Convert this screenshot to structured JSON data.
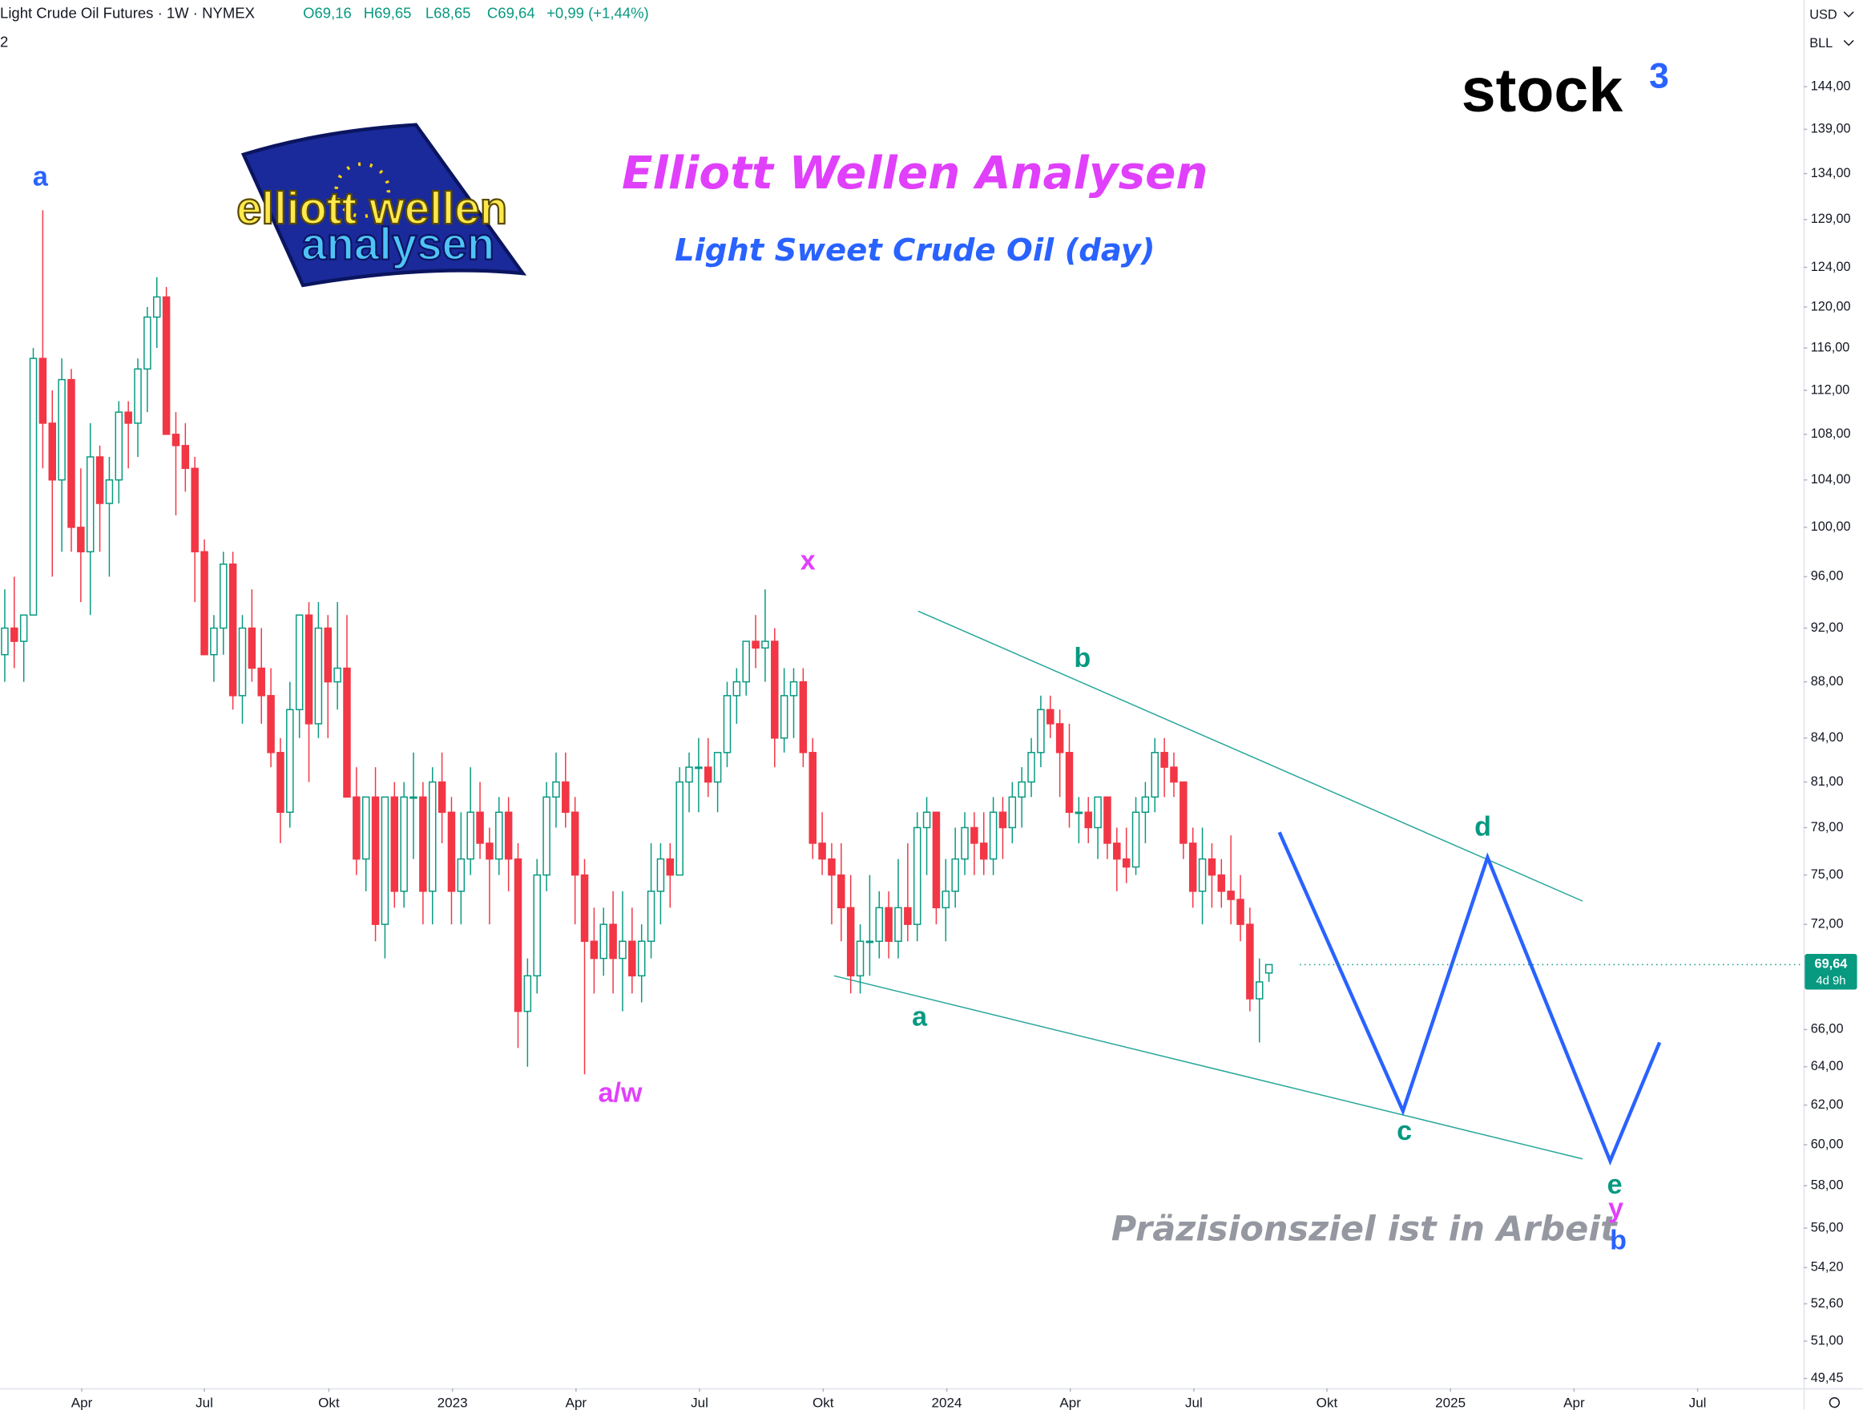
{
  "chart_data": {
    "type": "candlestick",
    "header": {
      "symbol": "Light Crude Oil Futures · 1W · NYMEX",
      "open": "O69,16",
      "high": "H69,65",
      "low": "L68,65",
      "close": "C69,64",
      "change": "+0,99 (+1,44%)",
      "left_fragment": "2"
    },
    "title": "Elliott Wellen Analysen",
    "subtitle": "Light Sweet Crude Oil (day)",
    "annotation": "Präzisionsziel ist in Arbeit",
    "brand": {
      "name": "stock",
      "sup": "3"
    },
    "logo": {
      "line1": "elliott wellen",
      "line2": "analysen"
    },
    "currency": "USD",
    "unit": "BLL",
    "price_tag": {
      "value": 69.64,
      "label": "69,64",
      "countdown": "4d 9h"
    },
    "up_color": "#089981",
    "down_color": "#f23645",
    "log_scale": true,
    "xlim": [
      -0.5,
      189.25
    ],
    "ylim": [
      49.05,
      154.7
    ],
    "xticks": [
      {
        "value": 8.1,
        "label": "Apr"
      },
      {
        "value": 21,
        "label": "Jul"
      },
      {
        "value": 34.1,
        "label": "Okt"
      },
      {
        "value": 47.1,
        "label": "2023"
      },
      {
        "value": 60.1,
        "label": "Apr"
      },
      {
        "value": 73.1,
        "label": "Jul"
      },
      {
        "value": 86.1,
        "label": "Okt"
      },
      {
        "value": 99.1,
        "label": "2024"
      },
      {
        "value": 112.1,
        "label": "Apr"
      },
      {
        "value": 125.1,
        "label": "Jul"
      },
      {
        "value": 139.1,
        "label": "Okt"
      },
      {
        "value": 152.1,
        "label": "2025"
      },
      {
        "value": 165.1,
        "label": "Apr"
      },
      {
        "value": 178.1,
        "label": "Jul"
      }
    ],
    "yticks": [
      {
        "value": 144,
        "label": "144,00"
      },
      {
        "value": 139,
        "label": "139,00"
      },
      {
        "value": 134,
        "label": "134,00"
      },
      {
        "value": 129,
        "label": "129,00"
      },
      {
        "value": 124,
        "label": "124,00"
      },
      {
        "value": 120,
        "label": "120,00"
      },
      {
        "value": 116,
        "label": "116,00"
      },
      {
        "value": 112,
        "label": "112,00"
      },
      {
        "value": 108,
        "label": "108,00"
      },
      {
        "value": 104,
        "label": "104,00"
      },
      {
        "value": 100,
        "label": "100,00"
      },
      {
        "value": 96,
        "label": "96,00"
      },
      {
        "value": 92,
        "label": "92,00"
      },
      {
        "value": 88,
        "label": "88,00"
      },
      {
        "value": 84,
        "label": "84,00"
      },
      {
        "value": 81,
        "label": "81,00"
      },
      {
        "value": 78,
        "label": "78,00"
      },
      {
        "value": 75,
        "label": "75,00"
      },
      {
        "value": 72,
        "label": "72,00"
      },
      {
        "value": 66,
        "label": "66,00"
      },
      {
        "value": 64,
        "label": "64,00"
      },
      {
        "value": 62,
        "label": "62,00"
      },
      {
        "value": 60,
        "label": "60,00"
      },
      {
        "value": 58,
        "label": "58,00"
      },
      {
        "value": 56,
        "label": "56,00"
      },
      {
        "value": 54.2,
        "label": "54,20"
      },
      {
        "value": 52.6,
        "label": "52,60"
      },
      {
        "value": 51,
        "label": "51,00"
      },
      {
        "value": 49.45,
        "label": "49,45"
      }
    ],
    "candles": [
      [
        90,
        95,
        88,
        92
      ],
      [
        92,
        96,
        89,
        91
      ],
      [
        91,
        93,
        88,
        93
      ],
      [
        93,
        116,
        93,
        115
      ],
      [
        115,
        130,
        105,
        109
      ],
      [
        109,
        112,
        96,
        104
      ],
      [
        104,
        115,
        98,
        113
      ],
      [
        113,
        114,
        98,
        100
      ],
      [
        100,
        105,
        94,
        98
      ],
      [
        98,
        109,
        93,
        106
      ],
      [
        106,
        107,
        98,
        102
      ],
      [
        102,
        106,
        96,
        104
      ],
      [
        104,
        111,
        102,
        110
      ],
      [
        110,
        111,
        105,
        109
      ],
      [
        109,
        115,
        106,
        114
      ],
      [
        114,
        120,
        110,
        119
      ],
      [
        119,
        123,
        116,
        121
      ],
      [
        121,
        122,
        108,
        108
      ],
      [
        108,
        110,
        101,
        107
      ],
      [
        107,
        109,
        103,
        105
      ],
      [
        105,
        106,
        94,
        98
      ],
      [
        98,
        99,
        90,
        90
      ],
      [
        90,
        93,
        88,
        92
      ],
      [
        92,
        98,
        90,
        97
      ],
      [
        97,
        98,
        86,
        87
      ],
      [
        87,
        93,
        85,
        92
      ],
      [
        92,
        95,
        88,
        89
      ],
      [
        89,
        92,
        85,
        87
      ],
      [
        87,
        89,
        82,
        83
      ],
      [
        83,
        84,
        77,
        79
      ],
      [
        79,
        88,
        78,
        86
      ],
      [
        86,
        93,
        84,
        93
      ],
      [
        93,
        94,
        81,
        85
      ],
      [
        85,
        94,
        84,
        92
      ],
      [
        92,
        93,
        84,
        88
      ],
      [
        88,
        94,
        86,
        89
      ],
      [
        89,
        93,
        80,
        80
      ],
      [
        80,
        82,
        75,
        76
      ],
      [
        76,
        80,
        74,
        80
      ],
      [
        80,
        82,
        71,
        72
      ],
      [
        72,
        80,
        70,
        80
      ],
      [
        80,
        81,
        73,
        74
      ],
      [
        74,
        81,
        73,
        80
      ],
      [
        80,
        83,
        76,
        80
      ],
      [
        80,
        81,
        72,
        74
      ],
      [
        74,
        82,
        72,
        81
      ],
      [
        81,
        83,
        77,
        79
      ],
      [
        79,
        80,
        72,
        74
      ],
      [
        74,
        79,
        72,
        76
      ],
      [
        76,
        82,
        75,
        79
      ],
      [
        79,
        81,
        76,
        77
      ],
      [
        77,
        78,
        72,
        76
      ],
      [
        76,
        80,
        75,
        79
      ],
      [
        79,
        80,
        74,
        76
      ],
      [
        76,
        77,
        65,
        67
      ],
      [
        67,
        70,
        64,
        69
      ],
      [
        69,
        76,
        68,
        75
      ],
      [
        75,
        81,
        74,
        80
      ],
      [
        80,
        83,
        78,
        81
      ],
      [
        81,
        83,
        78,
        79
      ],
      [
        79,
        80,
        72,
        75
      ],
      [
        75,
        76,
        63.6,
        71
      ],
      [
        71,
        73,
        68,
        70
      ],
      [
        70,
        73,
        69,
        72
      ],
      [
        72,
        74,
        68,
        70
      ],
      [
        70,
        74,
        67,
        71
      ],
      [
        71,
        73,
        68,
        69
      ],
      [
        69,
        72,
        67.5,
        71
      ],
      [
        71,
        77,
        70,
        74
      ],
      [
        74,
        77,
        72,
        76
      ],
      [
        76,
        77,
        73,
        75
      ],
      [
        75,
        82,
        75,
        81
      ],
      [
        81,
        83,
        79,
        82
      ],
      [
        82,
        84,
        79,
        82
      ],
      [
        82,
        84,
        80,
        81
      ],
      [
        81,
        83,
        79,
        83
      ],
      [
        83,
        88,
        82,
        87
      ],
      [
        87,
        89,
        85,
        88
      ],
      [
        88,
        91,
        87,
        91
      ],
      [
        91,
        93,
        89,
        90.5
      ],
      [
        90.5,
        95,
        88,
        91
      ],
      [
        91,
        92,
        82,
        84
      ],
      [
        84,
        89,
        83,
        87
      ],
      [
        87,
        89,
        84,
        88
      ],
      [
        88,
        89,
        82,
        83
      ],
      [
        83,
        84,
        76,
        77
      ],
      [
        77,
        79,
        75,
        76
      ],
      [
        76,
        77,
        72,
        75
      ],
      [
        75,
        77,
        71,
        73
      ],
      [
        73,
        75,
        68,
        69
      ],
      [
        69,
        72,
        68,
        71
      ],
      [
        71,
        75,
        69,
        71
      ],
      [
        71,
        74,
        70,
        73
      ],
      [
        73,
        74,
        70,
        71
      ],
      [
        71,
        76,
        70,
        73
      ],
      [
        73,
        77,
        71,
        72
      ],
      [
        72,
        79,
        71,
        78
      ],
      [
        78,
        80,
        75,
        79
      ],
      [
        79,
        79,
        72,
        73
      ],
      [
        73,
        76,
        71,
        74
      ],
      [
        74,
        78,
        73,
        76
      ],
      [
        76,
        79,
        75,
        78
      ],
      [
        78,
        79,
        75,
        77
      ],
      [
        77,
        79,
        75,
        76
      ],
      [
        76,
        80,
        75,
        79
      ],
      [
        79,
        80,
        76,
        78
      ],
      [
        78,
        81,
        77,
        80
      ],
      [
        80,
        82,
        78,
        81
      ],
      [
        81,
        84,
        80,
        83
      ],
      [
        83,
        87,
        82,
        86
      ],
      [
        86,
        87,
        84,
        85
      ],
      [
        85,
        86,
        80,
        83
      ],
      [
        83,
        85,
        78,
        79
      ],
      [
        79,
        80,
        77,
        79
      ],
      [
        79,
        80,
        77,
        78
      ],
      [
        78,
        80,
        76,
        80
      ],
      [
        80,
        80,
        76,
        77
      ],
      [
        77,
        78,
        74,
        76
      ],
      [
        76,
        78,
        74.5,
        75.5
      ],
      [
        75.5,
        80,
        75,
        79
      ],
      [
        79,
        81,
        77,
        80
      ],
      [
        80,
        84,
        79,
        83
      ],
      [
        83,
        84,
        80,
        82
      ],
      [
        82,
        83,
        80,
        81
      ],
      [
        81,
        81,
        76,
        77
      ],
      [
        77,
        78,
        73,
        74
      ],
      [
        74,
        78,
        72,
        76
      ],
      [
        76,
        77,
        73,
        75
      ],
      [
        75,
        76,
        73,
        74
      ],
      [
        74,
        77.5,
        72,
        73.5
      ],
      [
        73.5,
        75,
        71,
        72
      ],
      [
        72,
        73,
        67,
        67.7
      ],
      [
        67.7,
        70,
        65.3,
        68.65
      ],
      [
        69.16,
        69.65,
        68.65,
        69.64
      ]
    ],
    "channel": [
      {
        "color": "#26a69a",
        "points": [
          [
            96.1,
            93.3
          ],
          [
            166,
            73.4
          ]
        ]
      },
      {
        "color": "#26a69a",
        "points": [
          [
            87.25,
            69.0
          ],
          [
            166,
            59.3
          ]
        ]
      }
    ],
    "projection": {
      "color": "#2962ff",
      "points": [
        [
          134.1,
          77.7
        ],
        [
          147.1,
          61.7
        ],
        [
          156,
          76.1
        ],
        [
          168.9,
          59.2
        ],
        [
          174.1,
          65.3
        ]
      ]
    },
    "wave_labels": [
      {
        "text": "a",
        "color": "#2962ff"
      },
      {
        "text": "x",
        "color": "#e040fb"
      },
      {
        "text": "a/w",
        "color": "#e040fb"
      },
      {
        "text": "a",
        "color": "#089981"
      },
      {
        "text": "b",
        "color": "#089981"
      },
      {
        "text": "c",
        "color": "#089981"
      },
      {
        "text": "d",
        "color": "#089981"
      },
      {
        "text": "e",
        "color": "#089981"
      },
      {
        "text": "y",
        "color": "#e040fb"
      },
      {
        "text": "b",
        "color": "#2962ff"
      }
    ]
  }
}
